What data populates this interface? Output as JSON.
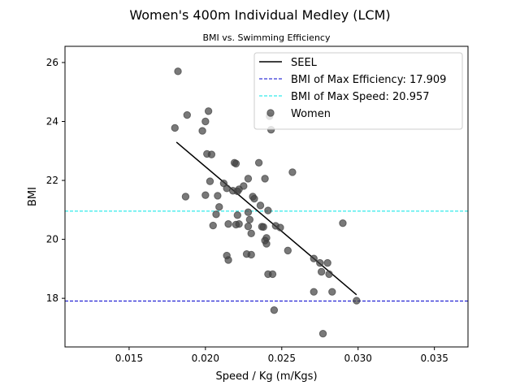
{
  "chart_data": {
    "type": "scatter",
    "title": "Women's 400m Individual Medley (LCM)",
    "subtitle": "BMI vs. Swimming Efficiency",
    "xlabel": "Speed / Kg (m/Kgs)",
    "ylabel": "BMI",
    "xlim": [
      0.0108,
      0.0372
    ],
    "ylim": [
      16.35,
      26.55
    ],
    "xticks": [
      {
        "value": 0.015,
        "label": "0.015"
      },
      {
        "value": 0.02,
        "label": "0.020"
      },
      {
        "value": 0.025,
        "label": "0.025"
      },
      {
        "value": 0.03,
        "label": "0.030"
      },
      {
        "value": 0.035,
        "label": "0.035"
      }
    ],
    "yticks": [
      {
        "value": 18,
        "label": "18"
      },
      {
        "value": 20,
        "label": "20"
      },
      {
        "value": 22,
        "label": "22"
      },
      {
        "value": 24,
        "label": "24"
      },
      {
        "value": 26,
        "label": "26"
      }
    ],
    "grid": false,
    "legend_position": "top-right",
    "series": [
      {
        "name": "Women",
        "kind": "scatter",
        "color": "#404040",
        "points": [
          [
            0.0182,
            25.7
          ],
          [
            0.018,
            23.78
          ],
          [
            0.0188,
            24.22
          ],
          [
            0.0202,
            24.35
          ],
          [
            0.02,
            24.0
          ],
          [
            0.0198,
            23.68
          ],
          [
            0.0201,
            22.9
          ],
          [
            0.0204,
            22.88
          ],
          [
            0.0242,
            24.18
          ],
          [
            0.0243,
            23.72
          ],
          [
            0.0219,
            22.6
          ],
          [
            0.022,
            22.57
          ],
          [
            0.0235,
            22.6
          ],
          [
            0.0228,
            22.06
          ],
          [
            0.0239,
            22.06
          ],
          [
            0.0257,
            22.28
          ],
          [
            0.0203,
            21.97
          ],
          [
            0.0212,
            21.9
          ],
          [
            0.0214,
            21.73
          ],
          [
            0.0218,
            21.65
          ],
          [
            0.0221,
            21.63
          ],
          [
            0.0222,
            21.7
          ],
          [
            0.0225,
            21.81
          ],
          [
            0.0187,
            21.45
          ],
          [
            0.02,
            21.5
          ],
          [
            0.0208,
            21.48
          ],
          [
            0.0231,
            21.45
          ],
          [
            0.0232,
            21.38
          ],
          [
            0.0236,
            21.15
          ],
          [
            0.0241,
            20.98
          ],
          [
            0.0209,
            21.1
          ],
          [
            0.0207,
            20.85
          ],
          [
            0.0221,
            20.82
          ],
          [
            0.0228,
            20.92
          ],
          [
            0.0229,
            20.67
          ],
          [
            0.0205,
            20.47
          ],
          [
            0.0215,
            20.52
          ],
          [
            0.022,
            20.5
          ],
          [
            0.0222,
            20.52
          ],
          [
            0.0228,
            20.44
          ],
          [
            0.0237,
            20.43
          ],
          [
            0.0238,
            20.42
          ],
          [
            0.0246,
            20.46
          ],
          [
            0.0249,
            20.4
          ],
          [
            0.023,
            20.2
          ],
          [
            0.024,
            20.05
          ],
          [
            0.0239,
            19.96
          ],
          [
            0.024,
            19.85
          ],
          [
            0.0254,
            19.62
          ],
          [
            0.0214,
            19.45
          ],
          [
            0.0227,
            19.5
          ],
          [
            0.023,
            19.48
          ],
          [
            0.0215,
            19.3
          ],
          [
            0.029,
            20.55
          ],
          [
            0.0271,
            19.35
          ],
          [
            0.0275,
            19.2
          ],
          [
            0.028,
            19.2
          ],
          [
            0.0276,
            18.9
          ],
          [
            0.0281,
            18.82
          ],
          [
            0.0241,
            18.82
          ],
          [
            0.0244,
            18.82
          ],
          [
            0.0271,
            18.22
          ],
          [
            0.0283,
            18.22
          ],
          [
            0.0299,
            17.92
          ],
          [
            0.0245,
            17.6
          ],
          [
            0.0277,
            16.8
          ]
        ]
      },
      {
        "name": "SEEL",
        "kind": "line",
        "color": "#000000",
        "points": [
          [
            0.0181,
            23.3
          ],
          [
            0.0299,
            18.12
          ]
        ]
      },
      {
        "name": "BMI of Max Efficiency: 17.909",
        "kind": "hline",
        "color": "#0000cc",
        "value": 17.909
      },
      {
        "name": "BMI of Max Speed: 20.957",
        "kind": "hline",
        "color": "#00e5e5",
        "value": 20.957
      }
    ],
    "legend_order": [
      "SEEL",
      "BMI of Max Efficiency: 17.909",
      "BMI of Max Speed: 20.957",
      "Women"
    ]
  }
}
